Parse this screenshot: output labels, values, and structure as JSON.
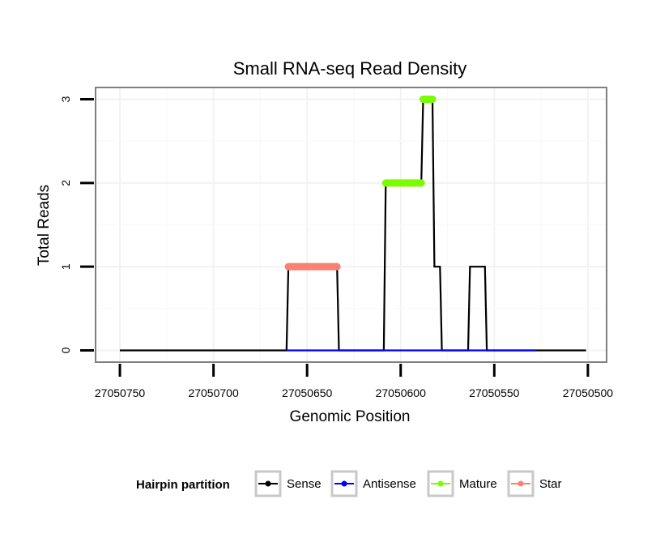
{
  "chart_data": {
    "type": "line",
    "title": "Small RNA-seq Read Density",
    "xlabel": "Genomic Position",
    "ylabel": "Total Reads",
    "x_reversed": true,
    "xlim": [
      27050763,
      27050490
    ],
    "ylim": [
      -0.14,
      3.14
    ],
    "xticks": [
      27050750,
      27050700,
      27050650,
      27050600,
      27050550,
      27050500
    ],
    "xtick_labels": [
      "27050750",
      "27050700",
      "27050650",
      "27050600",
      "27050550",
      "27050500"
    ],
    "yticks": [
      0,
      1,
      2,
      3
    ],
    "ytick_labels": [
      "0",
      "1",
      "2",
      "3"
    ],
    "grid": true,
    "legend": {
      "title": "Hairpin partition",
      "position": "bottom",
      "entries": [
        {
          "name": "Sense",
          "color": "#000000"
        },
        {
          "name": "Antisense",
          "color": "#0000ff"
        },
        {
          "name": "Mature",
          "color": "#7cfc00"
        },
        {
          "name": "Star",
          "color": "#fa8072"
        }
      ]
    },
    "series": [
      {
        "name": "Sense",
        "color": "#000000",
        "kind": "line",
        "x": [
          27050750,
          27050661,
          27050660,
          27050634,
          27050633,
          27050609,
          27050608,
          27050589,
          27050588,
          27050583,
          27050582,
          27050579,
          27050578,
          27050564,
          27050563,
          27050555,
          27050554,
          27050528,
          27050527,
          27050501
        ],
        "y": [
          0,
          0,
          1,
          1,
          0,
          0,
          2,
          2,
          3,
          3,
          1,
          1,
          0,
          0,
          1,
          1,
          0,
          0,
          0,
          0
        ]
      },
      {
        "name": "Antisense",
        "color": "#0000ff",
        "kind": "line",
        "x": [
          27050661,
          27050528
        ],
        "y": [
          0,
          0
        ]
      },
      {
        "name": "Mature",
        "color": "#7cfc00",
        "kind": "segments",
        "segments": [
          {
            "x": [
              27050608,
              27050589
            ],
            "y": 2
          },
          {
            "x": [
              27050588,
              27050583
            ],
            "y": 3
          }
        ]
      },
      {
        "name": "Star",
        "color": "#fa8072",
        "kind": "segments",
        "segments": [
          {
            "x": [
              27050660,
              27050634
            ],
            "y": 1
          }
        ]
      }
    ]
  }
}
